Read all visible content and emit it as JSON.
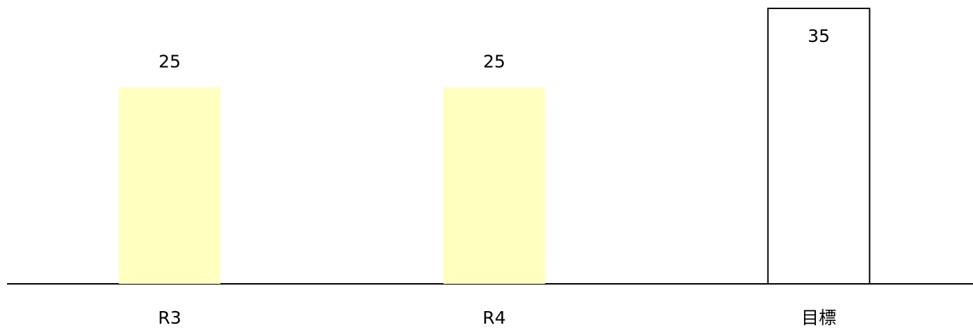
{
  "chart_data": {
    "type": "bar",
    "categories": [
      "R3",
      "R4",
      "目標"
    ],
    "values": [
      25,
      25,
      35
    ],
    "colors": [
      "#ffffc0",
      "#ffffc0",
      "#ffffff"
    ],
    "edgecolors": [
      "none",
      "none",
      "#000000"
    ]
  }
}
